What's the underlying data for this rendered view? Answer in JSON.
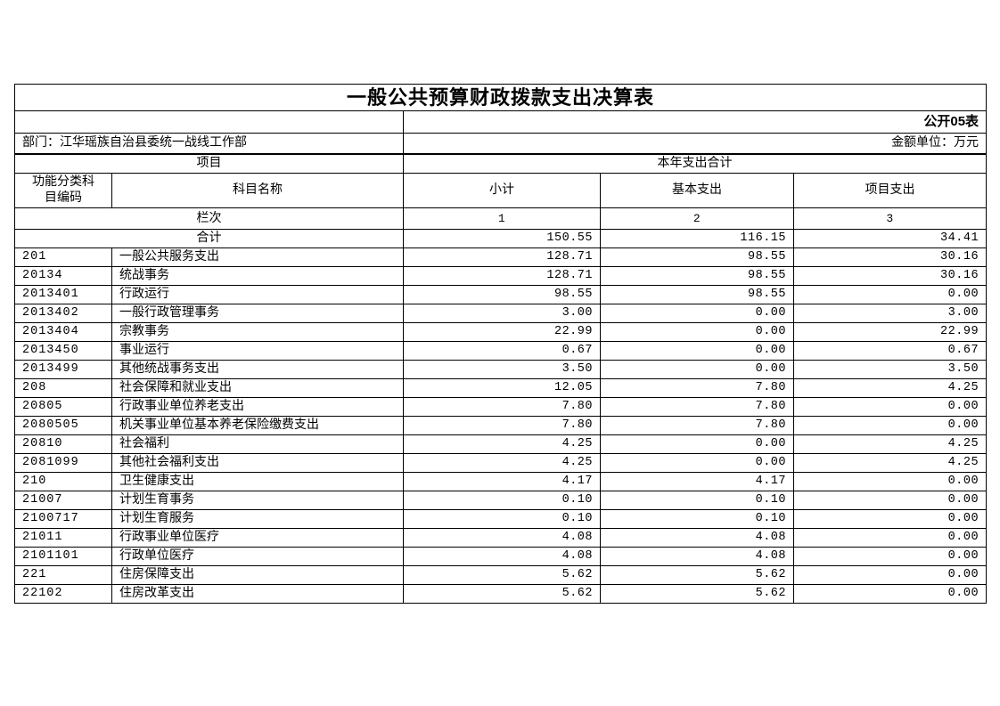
{
  "page": {
    "title": "一般公共预算财政拨款支出决算表",
    "table_label": "公开05表",
    "department": "部门：江华瑶族自治县委统一战线工作部",
    "unit_note": "金额单位：万元"
  },
  "header": {
    "project": "项目",
    "year_total": "本年支出合计",
    "func_code": "功能分类科\n目编码",
    "subject_name": "科目名称",
    "subtotal": "小计",
    "basic_exp": "基本支出",
    "project_exp": "项目支出",
    "row_label": "栏次",
    "col_indexes": [
      "1",
      "2",
      "3"
    ]
  },
  "total_row": {
    "label": "合计",
    "subtotal": "150.55",
    "basic": "116.15",
    "project": "34.41"
  },
  "rows": [
    {
      "code": "201",
      "name": "一般公共服务支出",
      "subtotal": "128.71",
      "basic": "98.55",
      "project": "30.16"
    },
    {
      "code": "20134",
      "name": "统战事务",
      "subtotal": "128.71",
      "basic": "98.55",
      "project": "30.16"
    },
    {
      "code": "2013401",
      "name": "行政运行",
      "subtotal": "98.55",
      "basic": "98.55",
      "project": "0.00"
    },
    {
      "code": "2013402",
      "name": "一般行政管理事务",
      "subtotal": "3.00",
      "basic": "0.00",
      "project": "3.00"
    },
    {
      "code": "2013404",
      "name": "宗教事务",
      "subtotal": "22.99",
      "basic": "0.00",
      "project": "22.99"
    },
    {
      "code": "2013450",
      "name": "事业运行",
      "subtotal": "0.67",
      "basic": "0.00",
      "project": "0.67"
    },
    {
      "code": "2013499",
      "name": "其他统战事务支出",
      "subtotal": "3.50",
      "basic": "0.00",
      "project": "3.50"
    },
    {
      "code": "208",
      "name": "社会保障和就业支出",
      "subtotal": "12.05",
      "basic": "7.80",
      "project": "4.25"
    },
    {
      "code": "20805",
      "name": "行政事业单位养老支出",
      "subtotal": "7.80",
      "basic": "7.80",
      "project": "0.00"
    },
    {
      "code": "2080505",
      "name": "机关事业单位基本养老保险缴费支出",
      "subtotal": "7.80",
      "basic": "7.80",
      "project": "0.00"
    },
    {
      "code": "20810",
      "name": "社会福利",
      "subtotal": "4.25",
      "basic": "0.00",
      "project": "4.25"
    },
    {
      "code": "2081099",
      "name": "其他社会福利支出",
      "subtotal": "4.25",
      "basic": "0.00",
      "project": "4.25"
    },
    {
      "code": "210",
      "name": "卫生健康支出",
      "subtotal": "4.17",
      "basic": "4.17",
      "project": "0.00"
    },
    {
      "code": "21007",
      "name": "计划生育事务",
      "subtotal": "0.10",
      "basic": "0.10",
      "project": "0.00"
    },
    {
      "code": "2100717",
      "name": "计划生育服务",
      "subtotal": "0.10",
      "basic": "0.10",
      "project": "0.00"
    },
    {
      "code": "21011",
      "name": "行政事业单位医疗",
      "subtotal": "4.08",
      "basic": "4.08",
      "project": "0.00"
    },
    {
      "code": "2101101",
      "name": "行政单位医疗",
      "subtotal": "4.08",
      "basic": "4.08",
      "project": "0.00"
    },
    {
      "code": "221",
      "name": "住房保障支出",
      "subtotal": "5.62",
      "basic": "5.62",
      "project": "0.00"
    },
    {
      "code": "22102",
      "name": "住房改革支出",
      "subtotal": "5.62",
      "basic": "5.62",
      "project": "0.00"
    }
  ],
  "colors": {
    "border": "#000000",
    "text": "#000000",
    "background": "#ffffff"
  }
}
